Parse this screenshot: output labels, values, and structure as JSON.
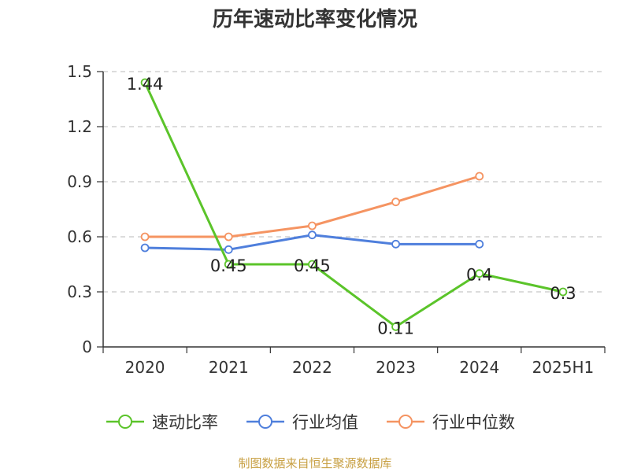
{
  "title": "历年速动比率变化情况",
  "source": "制图数据来自恒生聚源数据库",
  "chart_data": {
    "type": "line",
    "categories": [
      "2020",
      "2021",
      "2022",
      "2023",
      "2024",
      "2025H1"
    ],
    "ylim": [
      0,
      1.5
    ],
    "yticks": [
      0,
      0.3,
      0.6,
      0.9,
      1.2,
      1.5
    ],
    "ytick_labels": [
      "0",
      "0.3",
      "0.6",
      "0.9",
      "1.2",
      "1.5"
    ],
    "grid": true,
    "legend_position": "bottom",
    "series": [
      {
        "name": "速动比率",
        "color": "#5bc42a",
        "values": [
          1.44,
          0.45,
          0.45,
          0.11,
          0.4,
          0.3
        ],
        "labels": [
          "1.44",
          "0.45",
          "0.45",
          "0.11",
          "0.4",
          "0.3"
        ]
      },
      {
        "name": "行业均值",
        "color": "#4f7fdc",
        "values": [
          0.54,
          0.53,
          0.61,
          0.56,
          0.56,
          null
        ]
      },
      {
        "name": "行业中位数",
        "color": "#f59462",
        "values": [
          0.6,
          0.6,
          0.66,
          0.79,
          0.93,
          null
        ]
      }
    ]
  }
}
